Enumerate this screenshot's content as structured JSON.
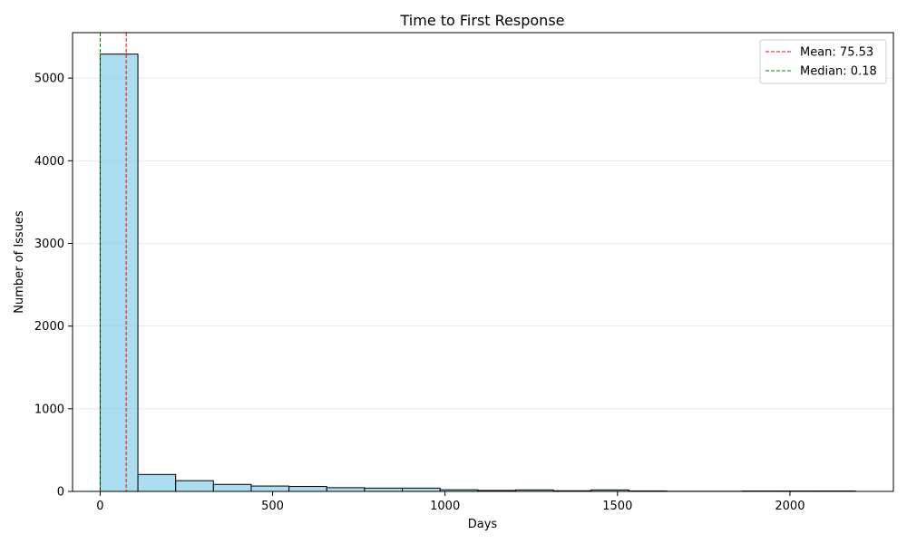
{
  "chart_data": {
    "type": "bar",
    "title": "Time to First Response",
    "xlabel": "Days",
    "ylabel": "Number of Issues",
    "xlim": [
      -80,
      2300
    ],
    "ylim": [
      0,
      5550
    ],
    "x_ticks": [
      0,
      500,
      1000,
      1500,
      2000
    ],
    "y_ticks": [
      0,
      1000,
      2000,
      3000,
      4000,
      5000
    ],
    "grid": "y",
    "legend_position": "top-right",
    "bin_edges": [
      0,
      109.5,
      219,
      328.5,
      438,
      547.5,
      657,
      766.5,
      876,
      985.5,
      1095,
      1204.5,
      1314,
      1423.5,
      1533,
      1642.5,
      1752,
      1861.5,
      1971,
      2080.5,
      2190
    ],
    "values": [
      5290,
      205,
      130,
      85,
      65,
      60,
      45,
      40,
      40,
      20,
      12,
      18,
      8,
      18,
      6,
      2,
      2,
      5,
      5,
      5
    ],
    "bar_color": "#87CEEB",
    "bar_edge_color": "#000000",
    "reference_lines": [
      {
        "label": "Mean: 75.53",
        "value": 75.53,
        "color": "#ff0000"
      },
      {
        "label": "Median: 0.18",
        "value": 0.18,
        "color": "#008000"
      }
    ]
  }
}
